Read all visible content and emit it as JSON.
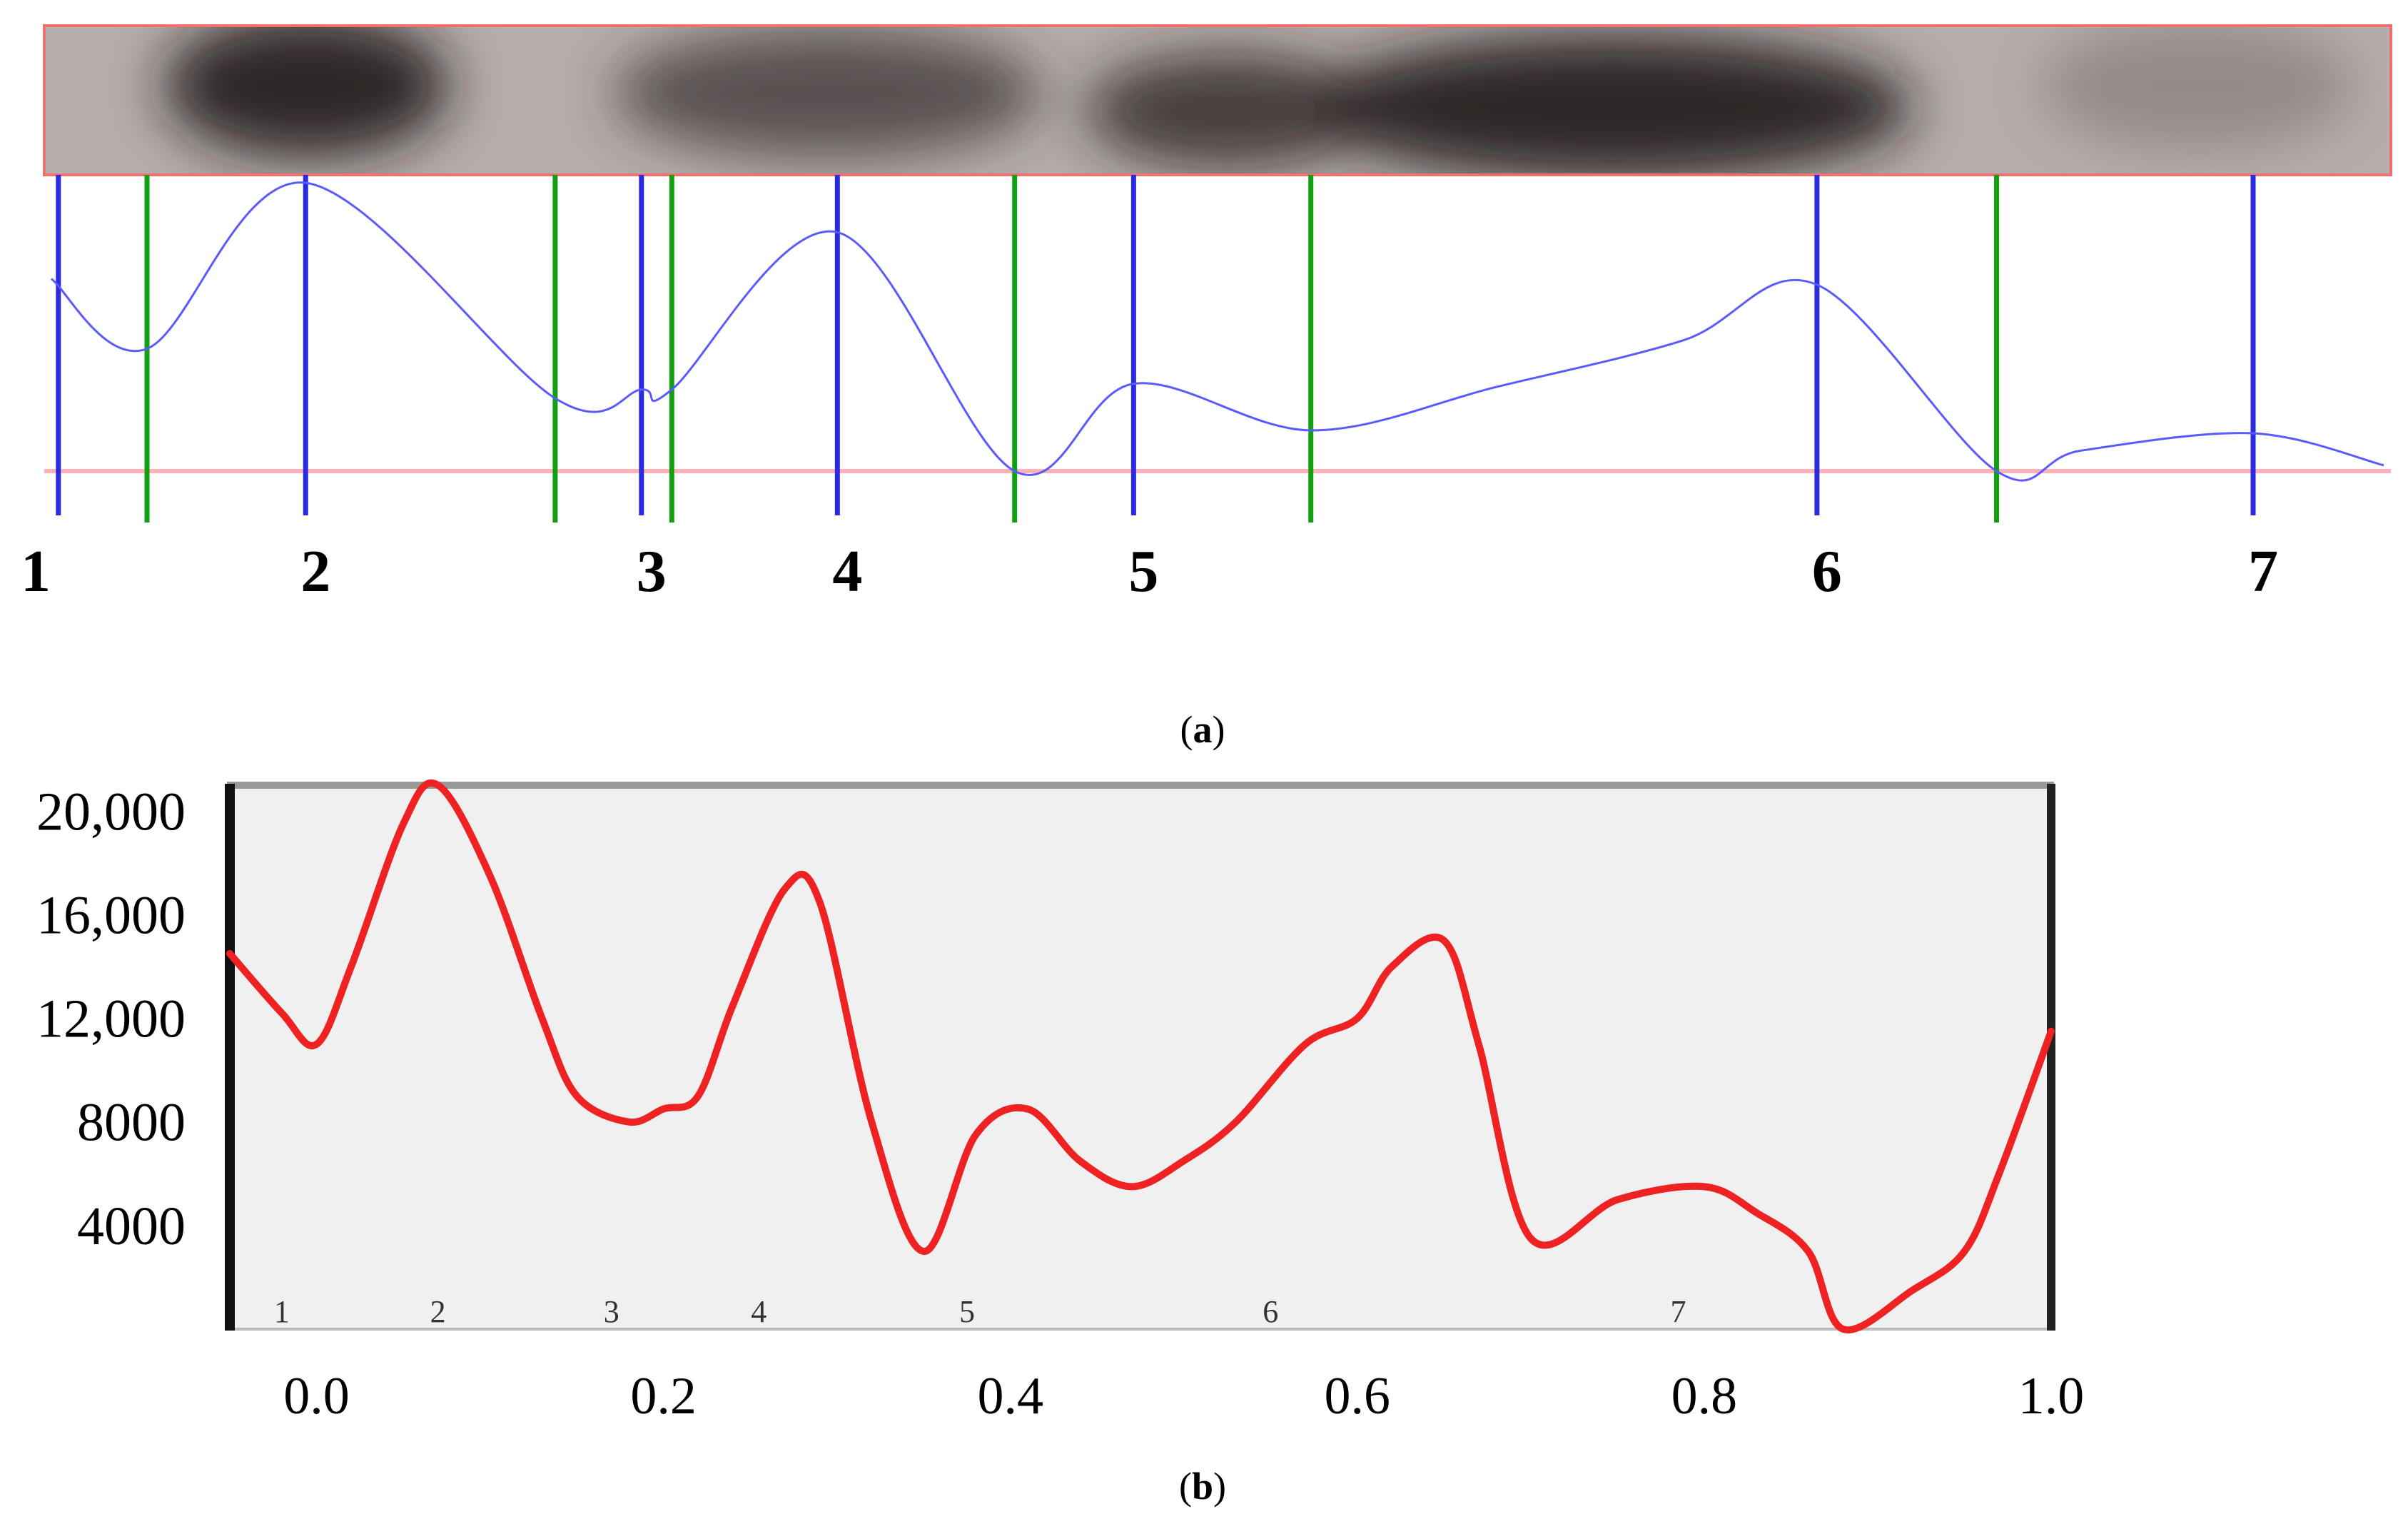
{
  "figure": {
    "panel_a_caption": "a",
    "panel_b_caption": "b"
  },
  "colors": {
    "profile_line": "#5a5aff",
    "peak_marker": "#2a2ae0",
    "valley_marker": "#12a012",
    "baseline": "#ffb0b8",
    "gel_border": "#f07070",
    "chart_b_line": "#ee2222",
    "chart_b_plot_bg": "#f0f0f0",
    "chart_b_frame": "#999999",
    "axis_text": "#000000"
  },
  "chart_data": [
    {
      "id": "a",
      "type": "line",
      "title": "",
      "xlabel": "",
      "ylabel": "",
      "band_labels": [
        "1",
        "2",
        "3",
        "4",
        "5",
        "6",
        "7"
      ],
      "x_domain": [
        0,
        1
      ],
      "y_domain": [
        0,
        1
      ],
      "peak_positions": [
        0.003,
        0.109,
        0.253,
        0.337,
        0.464,
        0.757,
        0.944
      ],
      "valley_positions": [
        0.041,
        0.216,
        0.266,
        0.413,
        0.54,
        0.834
      ],
      "profile": {
        "x": [
          0,
          0.041,
          0.109,
          0.216,
          0.253,
          0.266,
          0.337,
          0.413,
          0.464,
          0.54,
          0.62,
          0.7,
          0.757,
          0.834,
          0.87,
          0.944,
          1.0
        ],
        "y": [
          0.66,
          0.42,
          0.99,
          0.25,
          0.28,
          0.28,
          0.82,
          0.0,
          0.3,
          0.14,
          0.29,
          0.45,
          0.64,
          0.0,
          0.07,
          0.13,
          0.02
        ]
      }
    },
    {
      "id": "b",
      "type": "line",
      "title": "",
      "xlabel": "",
      "ylabel": "",
      "xlim": [
        -0.05,
        1.0
      ],
      "ylim": [
        0,
        21000
      ],
      "x_ticks": [
        "0.0",
        "0.2",
        "0.4",
        "0.6",
        "0.8",
        "1.0"
      ],
      "y_ticks": [
        "4000",
        "8000",
        "12,000",
        "16,000",
        "20,000"
      ],
      "grid": false,
      "band_labels": [
        "1",
        "2",
        "3",
        "4",
        "5",
        "6",
        "7"
      ],
      "band_label_x": [
        -0.02,
        0.07,
        0.17,
        0.255,
        0.375,
        0.55,
        0.785
      ],
      "series": [
        {
          "x": [
            -0.05,
            -0.02,
            0.0,
            0.02,
            0.05,
            0.07,
            0.1,
            0.13,
            0.15,
            0.18,
            0.2,
            0.22,
            0.24,
            0.27,
            0.29,
            0.32,
            0.35,
            0.38,
            0.41,
            0.44,
            0.47,
            0.5,
            0.53,
            0.57,
            0.6,
            0.62,
            0.65,
            0.67,
            0.7,
            0.75,
            0.8,
            0.83,
            0.86,
            0.88,
            0.92,
            0.95,
            0.97,
            1.0
          ],
          "y": [
            14500,
            12200,
            11000,
            14000,
            19500,
            21000,
            17500,
            12000,
            9000,
            8000,
            8500,
            9000,
            12500,
            17000,
            16500,
            8000,
            3000,
            7500,
            8500,
            6500,
            5500,
            6500,
            8000,
            11000,
            12000,
            14000,
            15000,
            11000,
            3500,
            5000,
            5500,
            4500,
            3000,
            0,
            1500,
            3000,
            6000,
            11500
          ]
        }
      ]
    }
  ]
}
